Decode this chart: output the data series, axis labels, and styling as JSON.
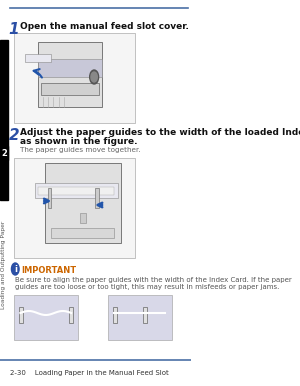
{
  "bg_color": "#ffffff",
  "sidebar_color": "#000000",
  "sidebar_label_color": "#555555",
  "sidebar_text": "Loading and Outputting Paper",
  "sidebar_number": "2",
  "sidebar_number_bg": "#000000",
  "sidebar_number_fg": "#ffffff",
  "top_line_color": "#4a6fa5",
  "bottom_line_color": "#4a6fa5",
  "footer_text": "2-30    Loading Paper in the Manual Feed Slot",
  "footer_color": "#333333",
  "step1_number": "1",
  "step1_number_color": "#2b4fa5",
  "step1_text": "Open the manual feed slot cover.",
  "step2_number": "2",
  "step2_number_color": "#2b4fa5",
  "step2_text": "Adjust the paper guides to the width of the loaded Index Card\nas shown in the figure.",
  "step2_sub": "The paper guides move together.",
  "important_label": "IMPORTANT",
  "important_label_color": "#cc6600",
  "important_icon_color": "#2b4fa5",
  "important_text": "Be sure to align the paper guides with the width of the Index Card. If the paper\nguides are too loose or too tight, this may result in misfeeds or paper jams.",
  "important_text_color": "#555555",
  "box_border_color": "#aaaaaa",
  "box_fill_color": "#f5f5f5",
  "arrow_color": "#2255aa",
  "printer_line_color": "#666666",
  "printer_fill_color": "#e8e8e8",
  "paper_color": "#ddddee"
}
